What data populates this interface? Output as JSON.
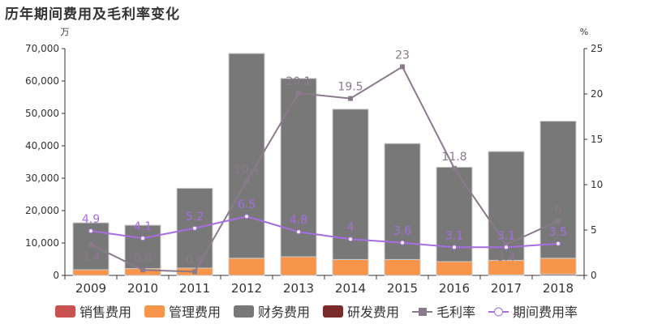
{
  "chart_data": {
    "type": "bar",
    "title": "历年期间费用及毛利率变化",
    "ylabel_left": "万",
    "ylabel_right": "%",
    "ylim_left": [
      0,
      70000
    ],
    "ylim_right": [
      0,
      25
    ],
    "yticks_left": [
      "0",
      "10,000",
      "20,000",
      "30,000",
      "40,000",
      "50,000",
      "60,000",
      "70,000"
    ],
    "yticks_right": [
      "0",
      "5",
      "10",
      "15",
      "20",
      "25"
    ],
    "categories": [
      "2009",
      "2010",
      "2011",
      "2012",
      "2013",
      "2014",
      "2015",
      "2016",
      "2017",
      "2018"
    ],
    "series": [
      {
        "name": "销售费用",
        "type": "bar",
        "color": "#c9514f",
        "values": [
          0,
          0,
          0,
          0,
          0,
          0,
          0,
          0,
          0,
          0
        ]
      },
      {
        "name": "管理费用",
        "type": "bar",
        "color": "#f7964a",
        "values": [
          1750,
          2100,
          2250,
          5300,
          5750,
          4900,
          4900,
          4250,
          4500,
          4900
        ]
      },
      {
        "name": "财务费用",
        "type": "bar",
        "color": "#787878",
        "values": [
          14500,
          13400,
          24650,
          63200,
          55050,
          46400,
          35800,
          29150,
          33600,
          42300
        ]
      },
      {
        "name": "研发费用",
        "type": "bar",
        "color": "#7b2a2a",
        "values": [
          0,
          0,
          0,
          0,
          0,
          0,
          0,
          0,
          150,
          400
        ]
      },
      {
        "name": "毛利率",
        "type": "line",
        "axis": "right",
        "color": "#8b7a8b",
        "values": [
          3.4,
          0.6,
          0.4,
          10.4,
          20.1,
          19.5,
          23,
          11.8,
          3.4,
          6
        ]
      },
      {
        "name": "期间费用率",
        "type": "line",
        "axis": "right",
        "color": "#a66ee0",
        "values": [
          4.9,
          4.1,
          5.2,
          6.5,
          4.8,
          4,
          3.6,
          3.1,
          3.1,
          3.5
        ]
      }
    ]
  }
}
